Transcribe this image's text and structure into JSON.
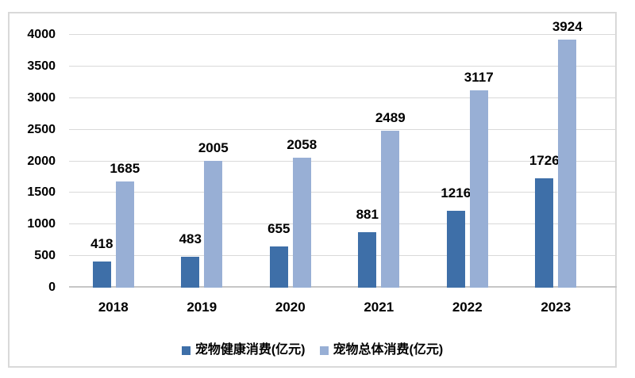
{
  "chart_data": {
    "type": "bar",
    "categories": [
      "2018",
      "2019",
      "2020",
      "2021",
      "2022",
      "2023"
    ],
    "series": [
      {
        "name": "宠物健康消费(亿元)",
        "values": [
          418,
          483,
          655,
          881,
          1216,
          1726
        ],
        "color": "#3e6fa8"
      },
      {
        "name": "宠物总体消费(亿元)",
        "values": [
          1685,
          2005,
          2058,
          2489,
          3117,
          3924
        ],
        "color": "#98afd5"
      }
    ],
    "title": "",
    "xlabel": "",
    "ylabel": "",
    "ylim": [
      0,
      4000
    ],
    "yticks": [
      0,
      500,
      1000,
      1500,
      2000,
      2500,
      3000,
      3500,
      4000
    ],
    "grid": true,
    "legend_position": "bottom",
    "bar_value_labels": true
  },
  "style": {
    "grid_color": "#d9d9d9",
    "axis_line_color": "#c6c6c6",
    "frame_border_color": "#d9d9d9",
    "text_color": "#000000",
    "background": "#ffffff"
  }
}
